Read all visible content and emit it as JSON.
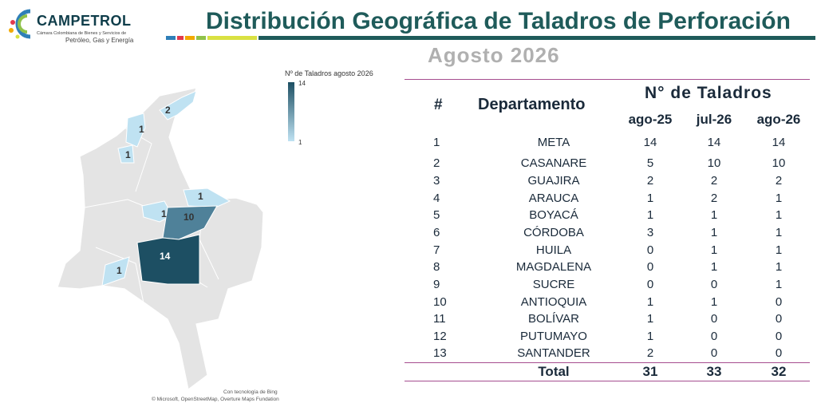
{
  "logo": {
    "name": "CAMPETROL",
    "sub1": "Cámara Colombiana de Bienes y Servicios de",
    "sub2": "Petróleo, Gas y Energía"
  },
  "title": "Distribución Geográfica de Taladros de Perforación",
  "subtitle": "Agosto 2026",
  "brand_colors": [
    "#e23a4d",
    "#f2a900",
    "#2f7fb8",
    "#8fc24a",
    "#0f3d4a",
    "#d9e142"
  ],
  "map": {
    "legend_title": "Nº de Taladros agosto 2026",
    "legend_max": "14",
    "legend_min": "1",
    "labels": [
      "2",
      "1",
      "1",
      "1",
      "1",
      "10",
      "14",
      "1"
    ],
    "credit1": "Con tecnología de Bing",
    "credit2": "© Microsoft, OpenStreetMap, Overture Maps Fundation"
  },
  "table": {
    "h_num": "#",
    "h_dep": "Departamento",
    "h_group": "N° de Taladros",
    "h_cols": [
      "ago-25",
      "jul-26",
      "ago-26"
    ],
    "rows": [
      {
        "n": "1",
        "dep": "META",
        "a": "14",
        "b": "14",
        "c": "14"
      },
      {
        "n": "2",
        "dep": "CASANARE",
        "a": "5",
        "b": "10",
        "c": "10"
      },
      {
        "n": "3",
        "dep": "GUAJIRA",
        "a": "2",
        "b": "2",
        "c": "2"
      },
      {
        "n": "4",
        "dep": "ARAUCA",
        "a": "1",
        "b": "2",
        "c": "1"
      },
      {
        "n": "5",
        "dep": "BOYACÁ",
        "a": "1",
        "b": "1",
        "c": "1"
      },
      {
        "n": "6",
        "dep": "CÓRDOBA",
        "a": "3",
        "b": "1",
        "c": "1"
      },
      {
        "n": "7",
        "dep": "HUILA",
        "a": "0",
        "b": "1",
        "c": "1"
      },
      {
        "n": "8",
        "dep": "MAGDALENA",
        "a": "0",
        "b": "1",
        "c": "1"
      },
      {
        "n": "9",
        "dep": "SUCRE",
        "a": "0",
        "b": "0",
        "c": "1"
      },
      {
        "n": "10",
        "dep": "ANTIOQUIA",
        "a": "1",
        "b": "1",
        "c": "0"
      },
      {
        "n": "11",
        "dep": "BOLÍVAR",
        "a": "1",
        "b": "0",
        "c": "0"
      },
      {
        "n": "12",
        "dep": "PUTUMAYO",
        "a": "1",
        "b": "0",
        "c": "0"
      },
      {
        "n": "13",
        "dep": "SANTANDER",
        "a": "2",
        "b": "0",
        "c": "0"
      }
    ],
    "total": {
      "label": "Total",
      "a": "31",
      "b": "33",
      "c": "32"
    }
  }
}
